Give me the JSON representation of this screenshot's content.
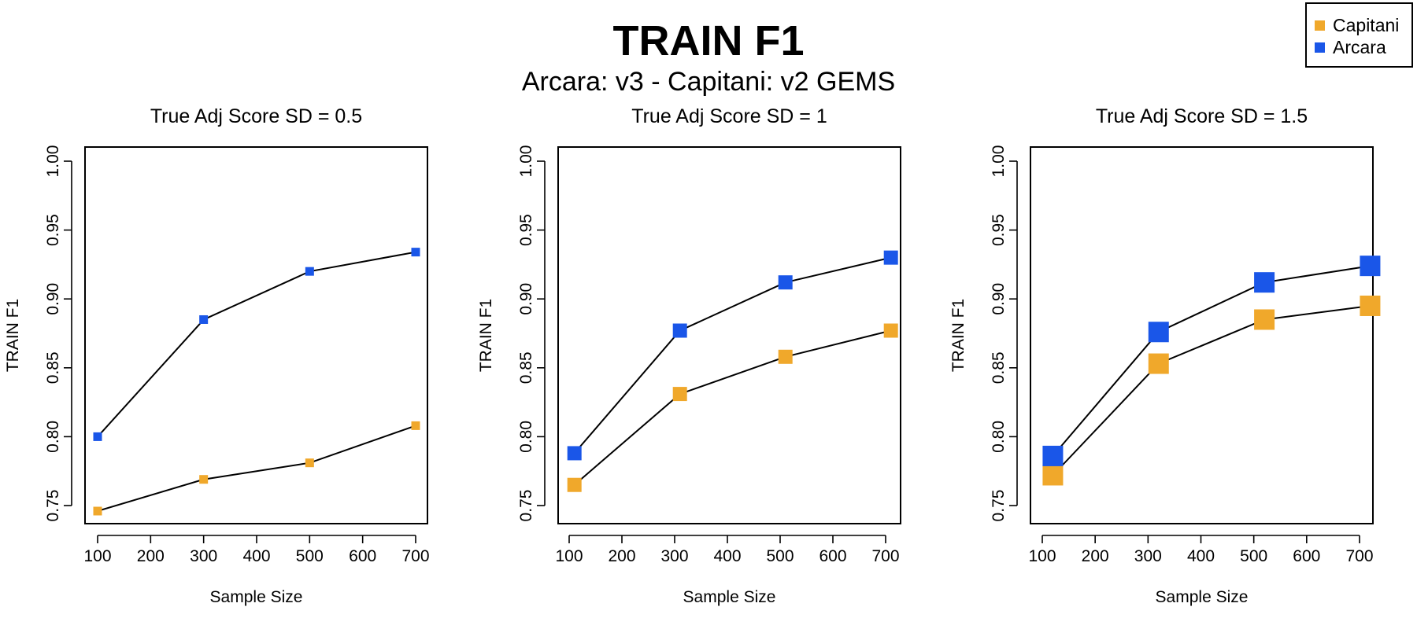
{
  "title": "TRAIN F1",
  "subtitle": "Arcara: v3 - Capitani: v2 GEMS",
  "legend": [
    {
      "name": "Capitani",
      "color": "#F0A82B"
    },
    {
      "name": "Arcara",
      "color": "#1A56E8"
    }
  ],
  "chart_data": [
    {
      "type": "line",
      "title": "True Adj Score SD = 0.5",
      "xlabel": "Sample Size",
      "ylabel": "TRAIN F1",
      "xlim": [
        100,
        700
      ],
      "ylim": [
        0.75,
        1.0
      ],
      "x_ticks": [
        100,
        200,
        300,
        400,
        500,
        600,
        700
      ],
      "y_ticks": [
        "0.75",
        "0.80",
        "0.85",
        "0.90",
        "0.95",
        "1.00"
      ],
      "grid": false,
      "series": [
        {
          "name": "Capitani",
          "color": "#F0A82B",
          "x": [
            100,
            300,
            500,
            700
          ],
          "y": [
            0.746,
            0.769,
            0.781,
            0.808
          ]
        },
        {
          "name": "Arcara",
          "color": "#1A56E8",
          "x": [
            100,
            300,
            500,
            700
          ],
          "y": [
            0.8,
            0.885,
            0.92,
            0.934
          ]
        }
      ]
    },
    {
      "type": "line",
      "title": "True Adj Score SD = 1",
      "xlabel": "Sample Size",
      "ylabel": "TRAIN F1",
      "xlim": [
        100,
        700
      ],
      "ylim": [
        0.75,
        1.0
      ],
      "x_ticks": [
        100,
        200,
        300,
        400,
        500,
        600,
        700
      ],
      "y_ticks": [
        "0.75",
        "0.80",
        "0.85",
        "0.90",
        "0.95",
        "1.00"
      ],
      "grid": false,
      "series": [
        {
          "name": "Capitani",
          "color": "#F0A82B",
          "x": [
            110,
            310,
            510,
            710
          ],
          "y": [
            0.765,
            0.831,
            0.858,
            0.877
          ]
        },
        {
          "name": "Arcara",
          "color": "#1A56E8",
          "x": [
            110,
            310,
            510,
            710
          ],
          "y": [
            0.788,
            0.877,
            0.912,
            0.93
          ]
        }
      ]
    },
    {
      "type": "line",
      "title": "True Adj Score SD = 1.5",
      "xlabel": "Sample Size",
      "ylabel": "TRAIN F1",
      "xlim": [
        100,
        700
      ],
      "ylim": [
        0.75,
        1.0
      ],
      "x_ticks": [
        100,
        200,
        300,
        400,
        500,
        600,
        700
      ],
      "y_ticks": [
        "0.75",
        "0.80",
        "0.85",
        "0.90",
        "0.95",
        "1.00"
      ],
      "grid": false,
      "series": [
        {
          "name": "Capitani",
          "color": "#F0A82B",
          "x": [
            120,
            320,
            520,
            720
          ],
          "y": [
            0.772,
            0.853,
            0.885,
            0.895
          ]
        },
        {
          "name": "Arcara",
          "color": "#1A56E8",
          "x": [
            120,
            320,
            520,
            720
          ],
          "y": [
            0.786,
            0.876,
            0.912,
            0.924
          ]
        }
      ]
    }
  ]
}
